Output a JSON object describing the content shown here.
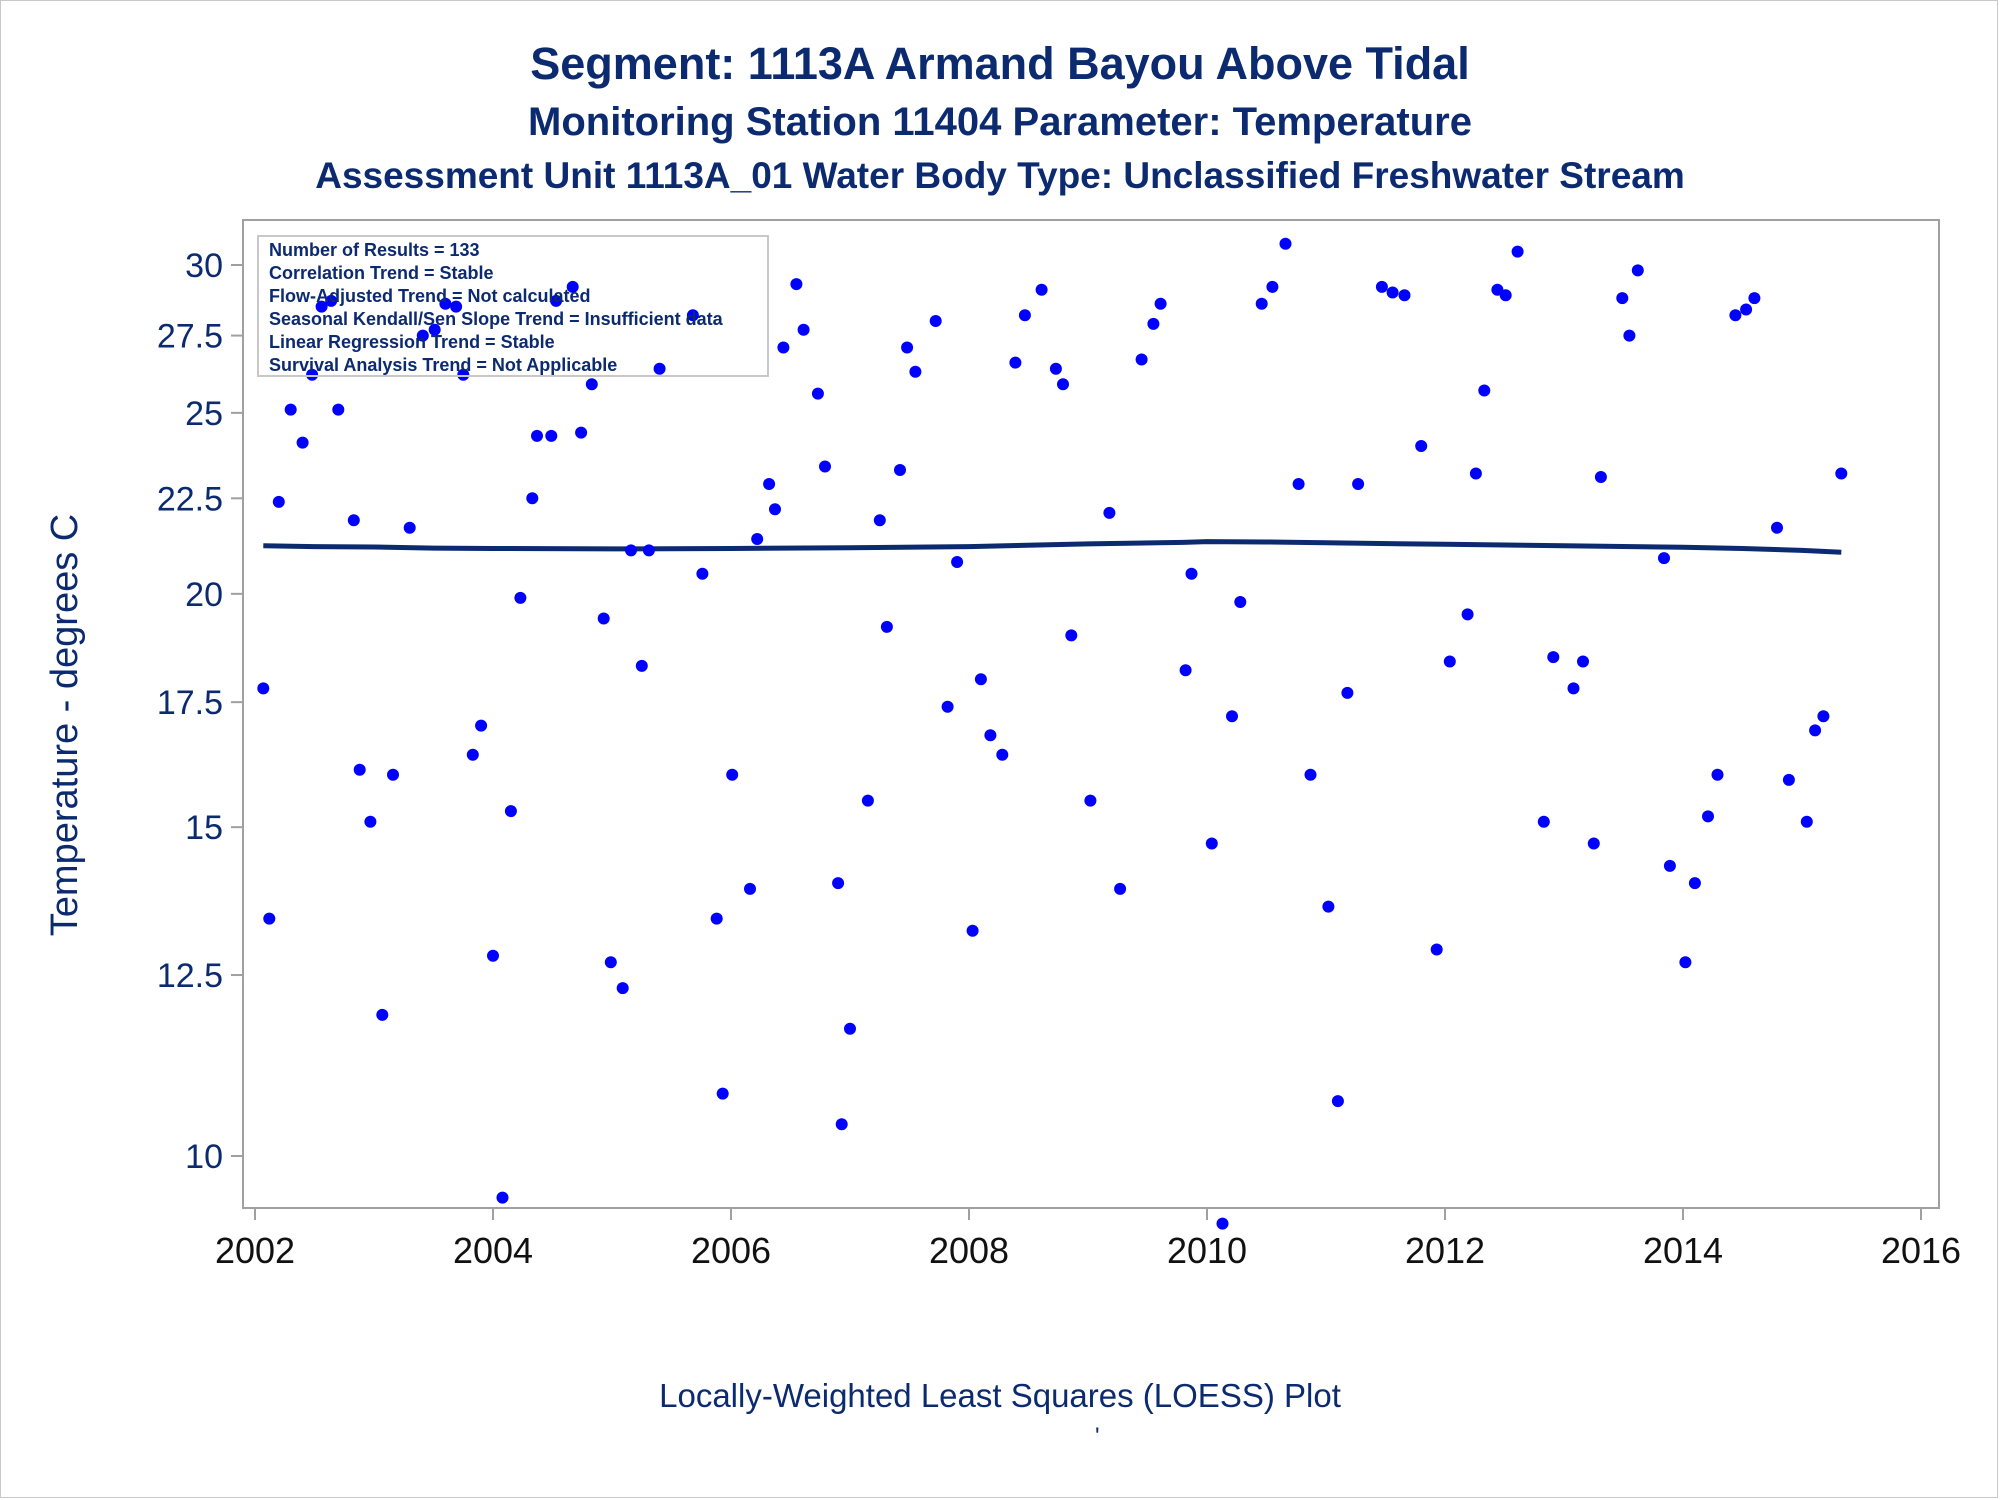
{
  "header": {
    "title": "Segment: 1113A  Armand Bayou Above Tidal",
    "subtitle": "Monitoring Station 11404 Parameter: Temperature",
    "subtitle2": "Assessment Unit 1113A_01   Water Body Type: Unclassified Freshwater Stream"
  },
  "stats_box": {
    "lines": [
      "Number of Results = 133",
      "Correlation Trend = Stable",
      "Flow-Adjusted Trend = Not calculated",
      "Seasonal Kendall/Sen Slope Trend = Insufficient data",
      "Linear Regression Trend = Stable",
      "Survival Analysis Trend = Not Applicable"
    ]
  },
  "footer": {
    "caption": "Locally-Weighted Least Squares (LOESS) Plot",
    "mark": "'"
  },
  "colors": {
    "text": "#0b2a6f",
    "points": "#0000ff",
    "loess": "#0b2a6f",
    "axis": "#a0a0a0"
  },
  "chart_data": {
    "type": "scatter",
    "xlabel": "",
    "ylabel": "Temperature - degrees C",
    "y_scale": "log",
    "xlim": [
      2002,
      2016
    ],
    "ylim": [
      9.3,
      31.2
    ],
    "x_ticks": [
      2002,
      2004,
      2006,
      2008,
      2010,
      2012,
      2014,
      2016
    ],
    "y_ticks": [
      10,
      12.5,
      15,
      17.5,
      20,
      22.5,
      25,
      27.5,
      30
    ],
    "y_tick_labels": [
      "10",
      "12.5",
      "15",
      "17.5",
      "20",
      "22.5",
      "25",
      "27.5",
      "30"
    ],
    "grid": false,
    "series": [
      {
        "type": "scatter",
        "points": [
          [
            2002.07,
            17.8
          ],
          [
            2002.12,
            13.4
          ],
          [
            2002.2,
            22.4
          ],
          [
            2002.3,
            25.1
          ],
          [
            2002.4,
            24.1
          ],
          [
            2002.48,
            26.2
          ],
          [
            2002.56,
            28.5
          ],
          [
            2002.64,
            28.7
          ],
          [
            2002.7,
            25.1
          ],
          [
            2002.83,
            21.9
          ],
          [
            2002.88,
            16.1
          ],
          [
            2002.97,
            15.1
          ],
          [
            2003.07,
            11.9
          ],
          [
            2003.16,
            16.0
          ],
          [
            2003.3,
            21.7
          ],
          [
            2003.41,
            27.5
          ],
          [
            2003.51,
            27.7
          ],
          [
            2003.6,
            28.6
          ],
          [
            2003.69,
            28.5
          ],
          [
            2003.75,
            26.2
          ],
          [
            2003.83,
            16.4
          ],
          [
            2003.9,
            17.0
          ],
          [
            2004.0,
            12.8
          ],
          [
            2004.08,
            9.5
          ],
          [
            2004.15,
            15.3
          ],
          [
            2004.23,
            19.9
          ],
          [
            2004.33,
            22.5
          ],
          [
            2004.37,
            24.3
          ],
          [
            2004.49,
            24.3
          ],
          [
            2004.53,
            28.7
          ],
          [
            2004.67,
            29.2
          ],
          [
            2004.74,
            24.4
          ],
          [
            2004.83,
            25.9
          ],
          [
            2004.93,
            19.4
          ],
          [
            2004.99,
            12.7
          ],
          [
            2005.09,
            12.3
          ],
          [
            2005.16,
            21.1
          ],
          [
            2005.25,
            18.3
          ],
          [
            2005.31,
            21.1
          ],
          [
            2005.4,
            26.4
          ],
          [
            2005.68,
            28.2
          ],
          [
            2005.76,
            20.5
          ],
          [
            2005.88,
            13.4
          ],
          [
            2005.93,
            10.8
          ],
          [
            2006.01,
            16.0
          ],
          [
            2006.16,
            13.9
          ],
          [
            2006.22,
            21.4
          ],
          [
            2006.32,
            22.9
          ],
          [
            2006.37,
            22.2
          ],
          [
            2006.44,
            27.1
          ],
          [
            2006.55,
            29.3
          ],
          [
            2006.61,
            27.7
          ],
          [
            2006.73,
            25.6
          ],
          [
            2006.79,
            23.4
          ],
          [
            2006.9,
            14.0
          ],
          [
            2006.93,
            10.4
          ],
          [
            2007.0,
            11.7
          ],
          [
            2007.15,
            15.5
          ],
          [
            2007.25,
            21.9
          ],
          [
            2007.31,
            19.2
          ],
          [
            2007.42,
            23.3
          ],
          [
            2007.48,
            27.1
          ],
          [
            2007.55,
            26.3
          ],
          [
            2007.72,
            28.0
          ],
          [
            2007.82,
            17.4
          ],
          [
            2007.9,
            20.8
          ],
          [
            2008.03,
            13.2
          ],
          [
            2008.1,
            18.0
          ],
          [
            2008.18,
            16.8
          ],
          [
            2008.28,
            16.4
          ],
          [
            2008.39,
            26.6
          ],
          [
            2008.47,
            28.2
          ],
          [
            2008.61,
            29.1
          ],
          [
            2008.73,
            26.4
          ],
          [
            2008.79,
            25.9
          ],
          [
            2008.86,
            19.0
          ],
          [
            2009.02,
            15.5
          ],
          [
            2009.18,
            22.1
          ],
          [
            2009.27,
            13.9
          ],
          [
            2009.45,
            26.7
          ],
          [
            2009.55,
            27.9
          ],
          [
            2009.61,
            28.6
          ],
          [
            2009.82,
            18.2
          ],
          [
            2009.87,
            20.5
          ],
          [
            2010.04,
            14.7
          ],
          [
            2010.13,
            9.2
          ],
          [
            2010.21,
            17.2
          ],
          [
            2010.28,
            19.8
          ],
          [
            2010.46,
            28.6
          ],
          [
            2010.55,
            29.2
          ],
          [
            2010.66,
            30.8
          ],
          [
            2010.77,
            22.9
          ],
          [
            2010.87,
            16.0
          ],
          [
            2011.02,
            13.6
          ],
          [
            2011.1,
            10.7
          ],
          [
            2011.18,
            17.7
          ],
          [
            2011.27,
            22.9
          ],
          [
            2011.47,
            29.2
          ],
          [
            2011.56,
            29.0
          ],
          [
            2011.66,
            28.9
          ],
          [
            2011.8,
            24.0
          ],
          [
            2011.93,
            12.9
          ],
          [
            2012.04,
            18.4
          ],
          [
            2012.19,
            19.5
          ],
          [
            2012.26,
            23.2
          ],
          [
            2012.33,
            25.7
          ],
          [
            2012.44,
            29.1
          ],
          [
            2012.51,
            28.9
          ],
          [
            2012.61,
            30.5
          ],
          [
            2012.83,
            15.1
          ],
          [
            2012.91,
            18.5
          ],
          [
            2013.08,
            17.8
          ],
          [
            2013.16,
            18.4
          ],
          [
            2013.25,
            14.7
          ],
          [
            2013.31,
            23.1
          ],
          [
            2013.49,
            28.8
          ],
          [
            2013.55,
            27.5
          ],
          [
            2013.62,
            29.8
          ],
          [
            2013.84,
            20.9
          ],
          [
            2013.89,
            14.3
          ],
          [
            2014.02,
            12.7
          ],
          [
            2014.1,
            14.0
          ],
          [
            2014.21,
            15.2
          ],
          [
            2014.29,
            16.0
          ],
          [
            2014.44,
            28.2
          ],
          [
            2014.53,
            28.4
          ],
          [
            2014.6,
            28.8
          ],
          [
            2014.79,
            21.7
          ],
          [
            2014.89,
            15.9
          ],
          [
            2015.04,
            15.1
          ],
          [
            2015.11,
            16.9
          ],
          [
            2015.18,
            17.2
          ],
          [
            2015.33,
            23.2
          ]
        ]
      },
      {
        "type": "line",
        "points": [
          [
            2002.07,
            21.22
          ],
          [
            2002.5,
            21.2
          ],
          [
            2003.0,
            21.19
          ],
          [
            2003.5,
            21.16
          ],
          [
            2004.0,
            21.15
          ],
          [
            2005.0,
            21.14
          ],
          [
            2006.0,
            21.15
          ],
          [
            2007.0,
            21.17
          ],
          [
            2008.0,
            21.2
          ],
          [
            2009.0,
            21.27
          ],
          [
            2009.8,
            21.31
          ],
          [
            2010.0,
            21.33
          ],
          [
            2010.5,
            21.32
          ],
          [
            2011.0,
            21.3
          ],
          [
            2012.0,
            21.26
          ],
          [
            2013.0,
            21.22
          ],
          [
            2014.0,
            21.18
          ],
          [
            2014.5,
            21.15
          ],
          [
            2015.0,
            21.1
          ],
          [
            2015.33,
            21.05
          ]
        ]
      }
    ]
  }
}
